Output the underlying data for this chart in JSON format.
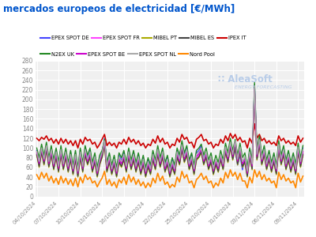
{
  "title": "mercados europeos de electricidad [€/MWh]",
  "background_color": "#ffffff",
  "plot_bg_color": "#f0f0f0",
  "grid_color": "#ffffff",
  "ylim": [
    0,
    280
  ],
  "yticks": [
    0,
    20,
    40,
    60,
    80,
    100,
    120,
    140,
    160,
    180,
    200,
    220,
    240,
    260,
    280
  ],
  "xtick_labels": [
    "04/10/2024",
    "07/10/2024",
    "10/10/2024",
    "13/10/2024",
    "16/10/2024",
    "19/10/2024",
    "22/10/2024",
    "25/10/2024",
    "28/10/2024",
    "31/10/2024",
    "03/11/2024",
    "06/11/2024",
    "09/11/2024"
  ],
  "xtick_positions": [
    0,
    9,
    18,
    27,
    36,
    45,
    54,
    63,
    72,
    81,
    90,
    99,
    108
  ],
  "n_points": 111,
  "series": {
    "EPEX SPOT DE": {
      "color": "#4444ff",
      "lw": 1.0,
      "values": [
        95,
        75,
        100,
        80,
        105,
        75,
        100,
        70,
        95,
        65,
        100,
        70,
        95,
        65,
        90,
        60,
        90,
        55,
        95,
        65,
        100,
        80,
        95,
        65,
        85,
        55,
        80,
        90,
        120,
        65,
        85,
        60,
        80,
        55,
        85,
        75,
        90,
        65,
        95,
        70,
        90,
        65,
        85,
        60,
        80,
        55,
        75,
        60,
        90,
        70,
        100,
        75,
        95,
        65,
        80,
        55,
        75,
        60,
        95,
        80,
        110,
        85,
        100,
        70,
        85,
        60,
        90,
        95,
        105,
        80,
        90,
        65,
        80,
        55,
        75,
        60,
        85,
        65,
        100,
        80,
        110,
        85,
        95,
        65,
        85,
        55,
        80,
        55,
        95,
        70,
        230,
        90,
        120,
        80,
        100,
        70,
        90,
        65,
        85,
        60,
        110,
        80,
        100,
        70,
        90,
        65,
        85,
        60,
        105,
        75,
        100
      ]
    },
    "EPEX SPOT FR": {
      "color": "#ff44ff",
      "lw": 1.0,
      "values": [
        90,
        65,
        95,
        70,
        100,
        65,
        90,
        60,
        85,
        55,
        90,
        60,
        85,
        55,
        80,
        50,
        80,
        45,
        85,
        55,
        90,
        70,
        85,
        55,
        75,
        45,
        70,
        85,
        110,
        55,
        75,
        50,
        70,
        45,
        75,
        65,
        80,
        55,
        85,
        60,
        80,
        55,
        75,
        50,
        70,
        45,
        65,
        50,
        80,
        60,
        90,
        65,
        85,
        55,
        70,
        45,
        65,
        50,
        85,
        70,
        100,
        75,
        90,
        60,
        75,
        50,
        80,
        85,
        95,
        70,
        85,
        60,
        75,
        50,
        70,
        55,
        80,
        60,
        95,
        75,
        105,
        80,
        110,
        70,
        95,
        65,
        75,
        45,
        85,
        60,
        220,
        80,
        110,
        70,
        90,
        60,
        80,
        55,
        75,
        50,
        100,
        70,
        90,
        60,
        80,
        55,
        75,
        50,
        95,
        65,
        90
      ]
    },
    "MIBEL PT": {
      "color": "#aaaa00",
      "lw": 1.0,
      "values": [
        85,
        60,
        90,
        65,
        95,
        60,
        85,
        55,
        80,
        50,
        85,
        55,
        80,
        50,
        75,
        45,
        75,
        40,
        80,
        50,
        85,
        65,
        80,
        50,
        70,
        40,
        65,
        80,
        105,
        50,
        70,
        45,
        65,
        40,
        70,
        60,
        75,
        50,
        80,
        55,
        75,
        50,
        70,
        45,
        65,
        40,
        60,
        45,
        75,
        55,
        85,
        60,
        80,
        50,
        65,
        40,
        60,
        45,
        80,
        65,
        95,
        70,
        85,
        55,
        70,
        45,
        75,
        80,
        90,
        65,
        80,
        55,
        70,
        45,
        65,
        50,
        75,
        55,
        90,
        70,
        100,
        75,
        100,
        65,
        90,
        60,
        70,
        40,
        80,
        55,
        215,
        75,
        105,
        65,
        85,
        55,
        75,
        50,
        70,
        45,
        95,
        65,
        85,
        55,
        75,
        50,
        70,
        45,
        90,
        60,
        85
      ]
    },
    "MIBEL ES": {
      "color": "#444444",
      "lw": 1.0,
      "values": [
        87,
        62,
        92,
        67,
        97,
        62,
        87,
        57,
        82,
        52,
        87,
        57,
        82,
        52,
        77,
        47,
        77,
        42,
        82,
        52,
        87,
        67,
        82,
        52,
        72,
        42,
        67,
        82,
        107,
        52,
        72,
        47,
        67,
        42,
        72,
        62,
        77,
        52,
        82,
        57,
        77,
        52,
        72,
        47,
        67,
        42,
        62,
        47,
        77,
        57,
        87,
        62,
        82,
        52,
        67,
        42,
        62,
        47,
        82,
        67,
        97,
        72,
        87,
        57,
        72,
        47,
        77,
        82,
        92,
        67,
        82,
        57,
        72,
        47,
        67,
        52,
        77,
        57,
        92,
        72,
        102,
        77,
        102,
        67,
        92,
        62,
        72,
        42,
        82,
        57,
        217,
        77,
        107,
        67,
        87,
        57,
        77,
        52,
        72,
        47,
        97,
        67,
        87,
        57,
        77,
        52,
        72,
        47,
        92,
        62,
        87
      ]
    },
    "IPEX IT": {
      "color": "#cc0000",
      "lw": 1.2,
      "values": [
        120,
        115,
        122,
        118,
        125,
        115,
        120,
        110,
        118,
        108,
        120,
        110,
        118,
        108,
        115,
        105,
        115,
        100,
        118,
        108,
        122,
        115,
        118,
        108,
        112,
        100,
        108,
        118,
        128,
        105,
        112,
        105,
        110,
        100,
        112,
        108,
        118,
        108,
        122,
        112,
        118,
        108,
        115,
        105,
        110,
        100,
        108,
        105,
        118,
        110,
        125,
        112,
        120,
        108,
        112,
        100,
        108,
        105,
        120,
        112,
        128,
        118,
        122,
        110,
        112,
        100,
        118,
        122,
        128,
        115,
        118,
        108,
        112,
        100,
        108,
        105,
        118,
        110,
        125,
        115,
        130,
        120,
        128,
        115,
        122,
        112,
        115,
        100,
        120,
        110,
        150,
        120,
        128,
        115,
        120,
        110,
        115,
        108,
        112,
        105,
        125,
        115,
        120,
        110,
        115,
        108,
        112,
        105,
        125,
        112,
        120
      ]
    },
    "N2EX UK": {
      "color": "#228822",
      "lw": 1.0,
      "values": [
        100,
        80,
        108,
        85,
        112,
        80,
        105,
        75,
        100,
        70,
        105,
        75,
        100,
        70,
        95,
        65,
        95,
        60,
        100,
        70,
        105,
        85,
        100,
        70,
        90,
        60,
        85,
        95,
        118,
        70,
        90,
        65,
        85,
        60,
        90,
        80,
        95,
        70,
        100,
        75,
        95,
        70,
        90,
        65,
        85,
        60,
        80,
        65,
        95,
        75,
        105,
        80,
        100,
        70,
        85,
        60,
        80,
        65,
        100,
        85,
        115,
        90,
        105,
        75,
        90,
        65,
        95,
        100,
        108,
        85,
        100,
        75,
        90,
        65,
        85,
        70,
        95,
        75,
        110,
        90,
        120,
        95,
        118,
        85,
        110,
        80,
        90,
        60,
        100,
        75,
        235,
        95,
        125,
        85,
        105,
        75,
        95,
        70,
        90,
        65,
        115,
        85,
        105,
        75,
        95,
        70,
        90,
        65,
        110,
        80,
        105
      ]
    },
    "EPEX SPOT BE": {
      "color": "#cc00cc",
      "lw": 1.0,
      "values": [
        92,
        68,
        98,
        73,
        103,
        68,
        93,
        63,
        88,
        58,
        93,
        63,
        88,
        58,
        83,
        53,
        83,
        48,
        88,
        58,
        93,
        73,
        88,
        58,
        78,
        48,
        73,
        88,
        113,
        58,
        78,
        53,
        73,
        48,
        78,
        68,
        83,
        58,
        88,
        63,
        83,
        58,
        78,
        53,
        73,
        48,
        68,
        53,
        83,
        63,
        93,
        68,
        88,
        58,
        73,
        48,
        68,
        53,
        88,
        73,
        103,
        78,
        93,
        63,
        78,
        53,
        83,
        88,
        98,
        73,
        88,
        63,
        78,
        53,
        73,
        58,
        83,
        63,
        98,
        78,
        108,
        83,
        113,
        73,
        98,
        68,
        78,
        48,
        88,
        63,
        222,
        83,
        113,
        73,
        93,
        63,
        83,
        58,
        78,
        53,
        103,
        73,
        93,
        63,
        83,
        58,
        78,
        53,
        98,
        68,
        93
      ]
    },
    "EPEX SPOT NL": {
      "color": "#aaaaaa",
      "lw": 1.0,
      "values": [
        93,
        72,
        100,
        77,
        105,
        72,
        97,
        67,
        92,
        62,
        97,
        67,
        92,
        62,
        87,
        57,
        87,
        52,
        92,
        62,
        97,
        77,
        92,
        62,
        82,
        52,
        77,
        90,
        115,
        62,
        82,
        57,
        77,
        52,
        82,
        72,
        87,
        62,
        92,
        67,
        87,
        62,
        82,
        57,
        77,
        52,
        72,
        57,
        87,
        67,
        97,
        72,
        92,
        62,
        77,
        52,
        72,
        57,
        92,
        77,
        107,
        82,
        97,
        67,
        82,
        57,
        87,
        92,
        100,
        77,
        92,
        67,
        82,
        57,
        77,
        62,
        87,
        67,
        102,
        82,
        112,
        87,
        115,
        77,
        102,
        72,
        82,
        52,
        92,
        67,
        228,
        87,
        117,
        77,
        97,
        67,
        87,
        62,
        82,
        57,
        107,
        77,
        97,
        67,
        87,
        62,
        82,
        57,
        102,
        72,
        97
      ]
    },
    "Nord Pool": {
      "color": "#ff8800",
      "lw": 1.2,
      "values": [
        45,
        35,
        50,
        38,
        48,
        32,
        42,
        28,
        38,
        25,
        42,
        28,
        38,
        25,
        35,
        22,
        38,
        20,
        40,
        28,
        45,
        35,
        40,
        28,
        32,
        20,
        30,
        38,
        52,
        25,
        35,
        22,
        30,
        18,
        35,
        28,
        40,
        25,
        45,
        30,
        40,
        25,
        35,
        22,
        30,
        18,
        28,
        20,
        38,
        28,
        48,
        32,
        42,
        25,
        30,
        18,
        25,
        20,
        40,
        30,
        52,
        38,
        45,
        28,
        32,
        18,
        35,
        40,
        48,
        35,
        42,
        28,
        32,
        18,
        28,
        22,
        38,
        28,
        50,
        38,
        55,
        42,
        50,
        35,
        48,
        32,
        32,
        18,
        40,
        28,
        55,
        40,
        52,
        35,
        45,
        32,
        38,
        28,
        32,
        18,
        50,
        35,
        45,
        32,
        38,
        28,
        32,
        18,
        48,
        30,
        42
      ]
    }
  },
  "logo_text": "AleaSoft",
  "logo_subtext": "ENERGY FORECASTING",
  "watermark_color": "#b8cce8"
}
